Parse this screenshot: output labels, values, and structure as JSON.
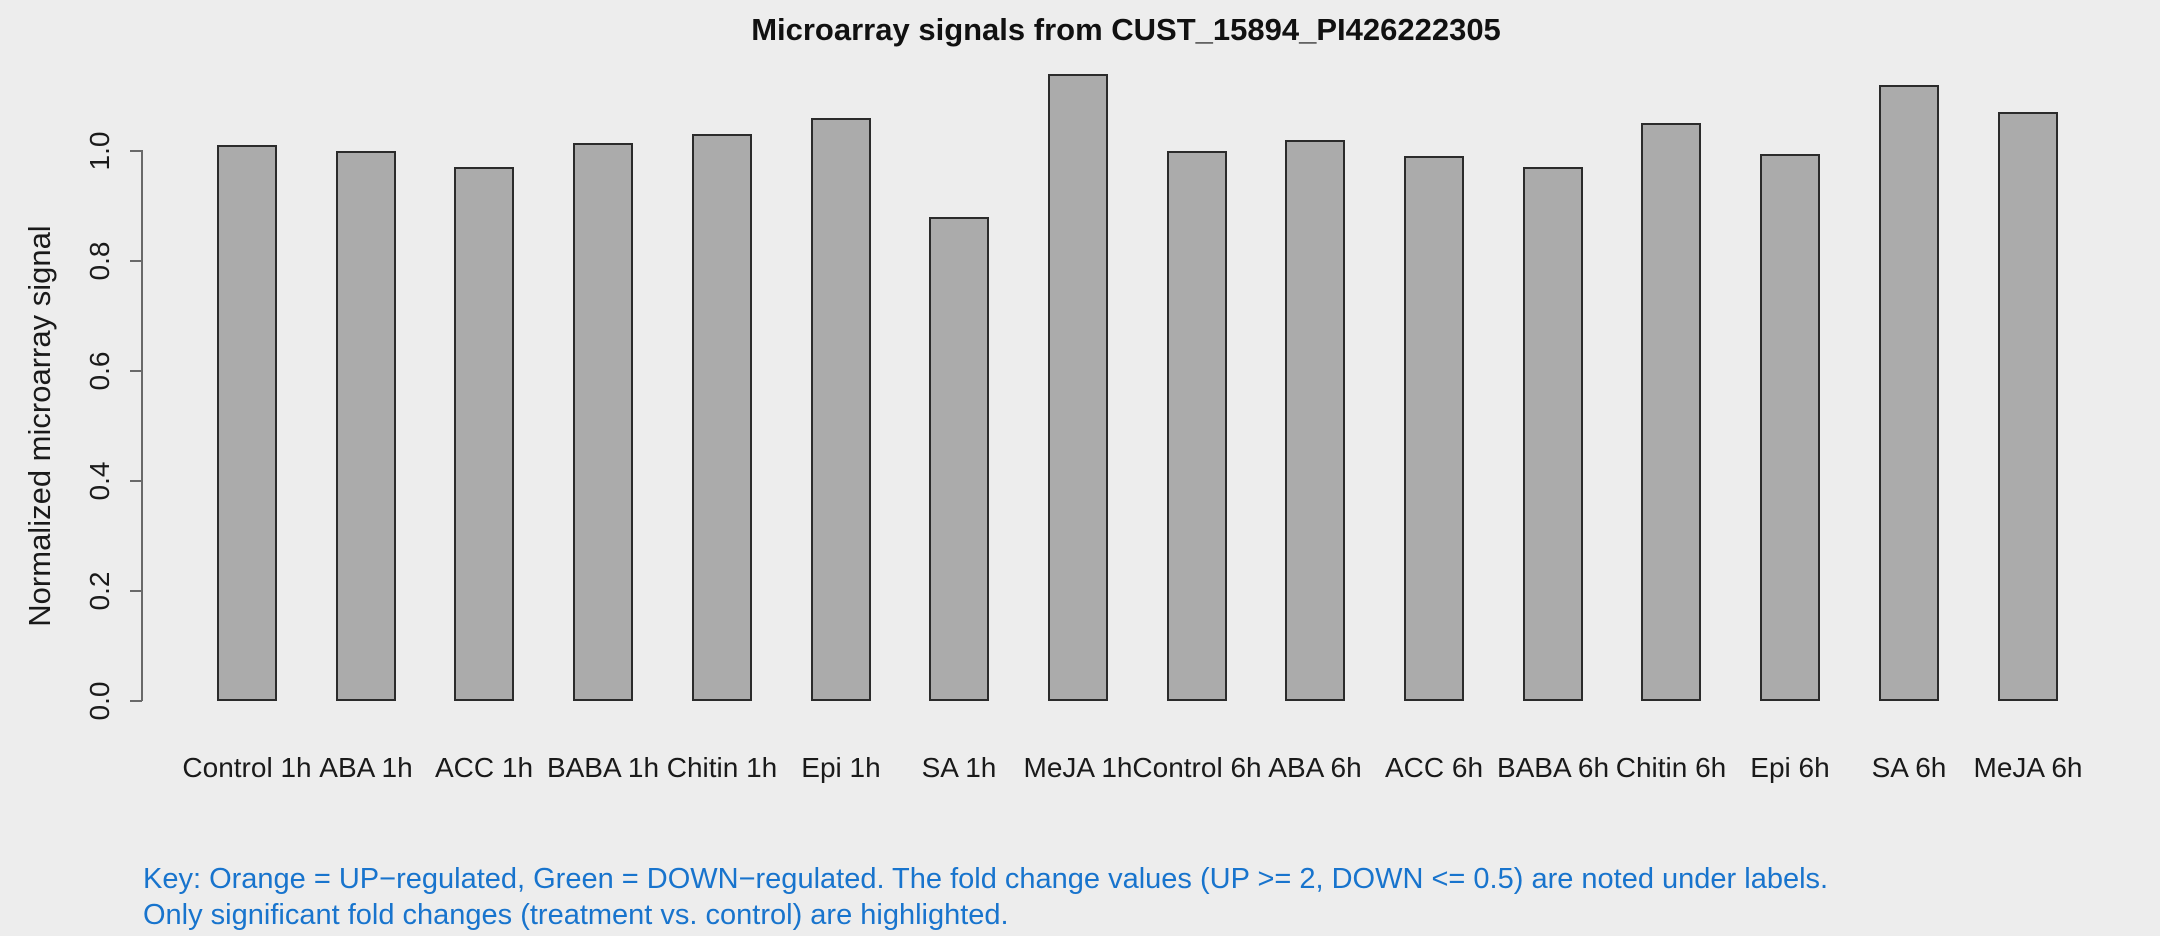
{
  "title": "Microarray signals from CUST_15894_PI426222305",
  "y_axis": {
    "label": "Normalized microarray signal",
    "tick_labels": [
      "0.0",
      "0.2",
      "0.4",
      "0.6",
      "0.8",
      "1.0"
    ]
  },
  "chart_data": {
    "type": "bar",
    "title": "Microarray signals from CUST_15894_PI426222305",
    "categories": [
      "Control 1h",
      "ABA 1h",
      "ACC 1h",
      "BABA 1h",
      "Chitin 1h",
      "Epi 1h",
      "SA 1h",
      "MeJA 1h",
      "Control 6h",
      "ABA 6h",
      "ACC 6h",
      "BABA 6h",
      "Chitin 6h",
      "Epi 6h",
      "SA 6h",
      "MeJA 6h"
    ],
    "values": [
      1.01,
      1.0,
      0.97,
      1.015,
      1.03,
      1.06,
      0.88,
      1.14,
      1.0,
      1.02,
      0.99,
      0.97,
      1.05,
      0.995,
      1.12,
      1.07
    ],
    "xlabel": "",
    "ylabel": "Normalized microarray signal",
    "ylim": [
      0,
      1.15
    ],
    "yticks": [
      0.0,
      0.2,
      0.4,
      0.6,
      0.8,
      1.0
    ],
    "grid": false,
    "legend": "none",
    "bar_fill_color": "#ABABAB",
    "bar_border_color": "#2b2b2b",
    "background_color": "#EDEDED"
  },
  "footnote": {
    "line1": "Key: Orange = UP−regulated, Green = DOWN−regulated. The fold change values (UP >= 2, DOWN <= 0.5) are noted under labels.",
    "line2": "Only significant fold changes (treatment vs. control) are highlighted.",
    "color": "#1874CD"
  }
}
